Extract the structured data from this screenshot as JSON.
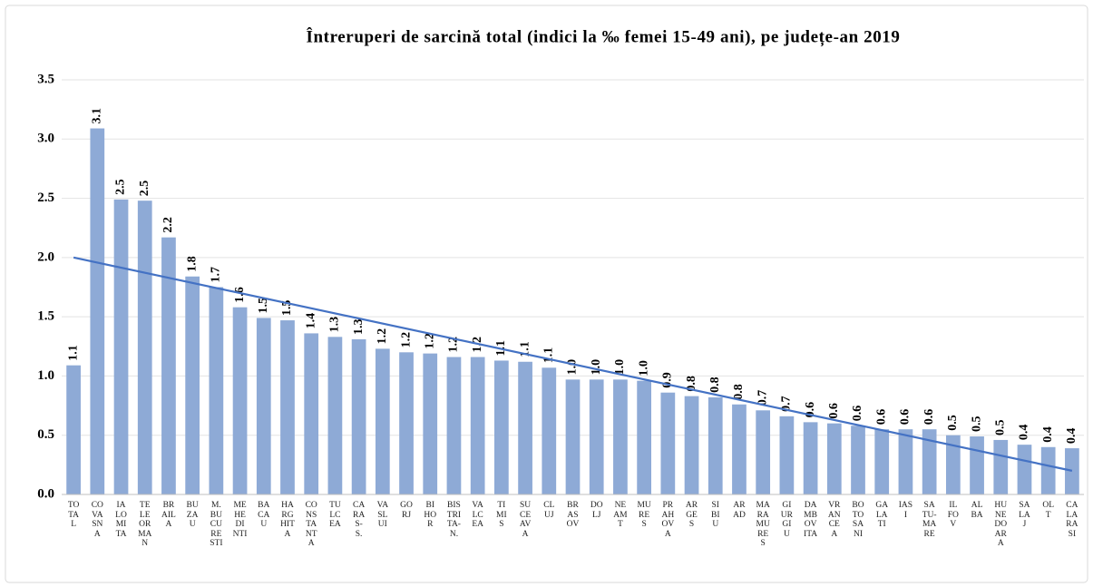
{
  "chart_data": {
    "type": "bar",
    "title": "Întreruperi de sarcină total (indici la ‰ femei 15-49 ani), pe județe-an 2019",
    "categories": [
      "TO\nTA\nL",
      "CO\nVA\nSN\nA",
      "IA\nLO\nMI\nTA",
      "TE\nLE\nOR\nMA\nN",
      "BR\nAIL\nA",
      "BU\nZA\nU",
      "M.\nBU\nCU\nRE\nSTI",
      "ME\nHE\nDI\nNTI",
      "BA\nCA\nU",
      "HA\nRG\nHIT\nA",
      "CO\nNS\nTA\nNT\nA",
      "TU\nLC\nEA",
      "CA\nRA\nS-\nS.",
      "VA\nSL\nUI",
      "GO\nRJ",
      "BI\nHO\nR",
      "BIS\nTRI\nTA-\nN.",
      "VA\nLC\nEA",
      "TI\nMI\nS",
      "SU\nCE\nAV\nA",
      "CL\nUJ",
      "BR\nAS\nOV",
      "DO\nLJ",
      "NE\nAM\nT",
      "MU\nRE\nS",
      "PR\nAH\nOV\nA",
      "AR\nGE\nS",
      "SI\nBI\nU",
      "AR\nAD",
      "MA\nRA\nMU\nRE\nS",
      "GI\nUR\nGI\nU",
      "DA\nMB\nOV\nITA",
      "VR\nAN\nCE\nA",
      "BO\nTO\nSA\nNI",
      "GA\nLA\nTI",
      "IAS\nI",
      "SA\nTU-\nMA\nRE",
      "IL\nFO\nV",
      "AL\nBA",
      "HU\nNE\nDO\nAR\nA",
      "SA\nLA\nJ",
      "OL\nT",
      "CA\nLA\nRA\nSI"
    ],
    "values": [
      1.09,
      3.09,
      2.49,
      2.48,
      2.17,
      1.84,
      1.75,
      1.58,
      1.49,
      1.47,
      1.36,
      1.33,
      1.31,
      1.23,
      1.2,
      1.19,
      1.16,
      1.16,
      1.13,
      1.12,
      1.07,
      0.97,
      0.97,
      0.97,
      0.96,
      0.86,
      0.83,
      0.82,
      0.76,
      0.71,
      0.66,
      0.61,
      0.6,
      0.58,
      0.55,
      0.55,
      0.55,
      0.5,
      0.49,
      0.46,
      0.42,
      0.4,
      0.39
    ],
    "value_labels": [
      "1.1",
      "3.1",
      "2.5",
      "2.5",
      "2.2",
      "1.8",
      "1.7",
      "1.6",
      "1.5",
      "1.5",
      "1.4",
      "1.3",
      "1.3",
      "1.2",
      "1.2",
      "1.2",
      "1.2",
      "1.2",
      "1.1",
      "1.1",
      "1.1",
      "1.0",
      "1.0",
      "1.0",
      "1.0",
      "0.9",
      "0.8",
      "0.8",
      "0.8",
      "0.7",
      "0.7",
      "0.6",
      "0.6",
      "0.6",
      "0.6",
      "0.6",
      "0.6",
      "0.5",
      "0.5",
      "0.5",
      "0.4",
      "0.4",
      "0.4"
    ],
    "color": "#8eaad6",
    "trendline": {
      "color": "#4472c4",
      "values": [
        2.0,
        0.2
      ]
    },
    "ylim": [
      0,
      3.5
    ],
    "yticks": [
      {
        "value": 0,
        "label": "0.0"
      },
      0.5,
      {
        "value": 1,
        "label": "1.0"
      },
      1.5,
      {
        "value": 2,
        "label": "2.0"
      },
      2.5,
      {
        "value": 3,
        "label": "3.0"
      },
      3.5
    ],
    "grid": true
  }
}
